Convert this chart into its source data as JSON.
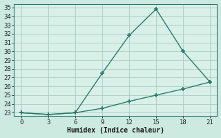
{
  "xlabel": "Humidex (Indice chaleur)",
  "line1_x": [
    0,
    3,
    6,
    9,
    12,
    15,
    18,
    21
  ],
  "line1_y": [
    23,
    22.8,
    23.0,
    27.5,
    31.8,
    34.8,
    30.0,
    26.5
  ],
  "line2_x": [
    0,
    3,
    6,
    9,
    12,
    15,
    18,
    21
  ],
  "line2_y": [
    23,
    22.8,
    23.0,
    23.5,
    24.3,
    25.0,
    25.7,
    26.5
  ],
  "line_color": "#2a7a6a",
  "bg_color": "#cceae0",
  "grid_color": "#aaccc4",
  "plot_bg": "#d8f0e8",
  "xlim_min": -0.8,
  "xlim_max": 21.8,
  "ylim_min": 22.6,
  "ylim_max": 35.4,
  "xticks": [
    0,
    3,
    6,
    9,
    12,
    15,
    18,
    21
  ],
  "yticks": [
    23,
    24,
    25,
    26,
    27,
    28,
    29,
    30,
    31,
    32,
    33,
    34,
    35
  ],
  "marker": "+",
  "markersize": 5,
  "linewidth": 1.0,
  "fontsize_axis": 6.5,
  "fontsize_label": 7.0
}
